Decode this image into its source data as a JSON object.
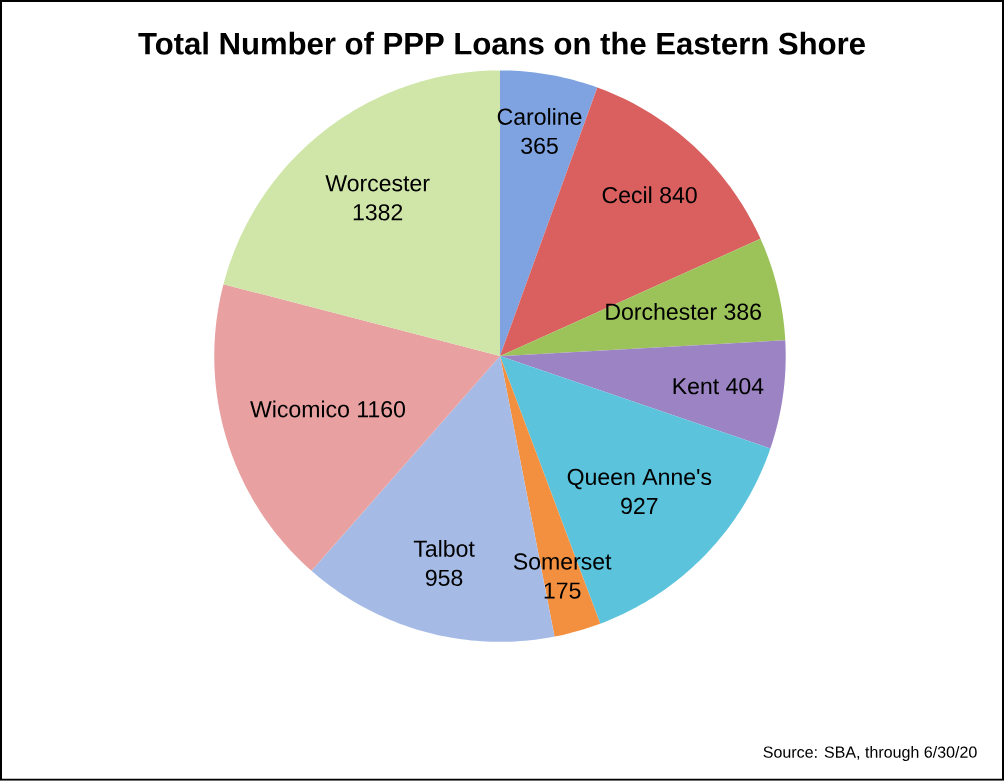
{
  "chart_data": {
    "type": "pie",
    "title": "Total Number of PPP Loans on the Eastern Shore",
    "categories": [
      "Caroline",
      "Cecil",
      "Dorchester",
      "Kent",
      "Queen Anne's",
      "Somerset",
      "Talbot",
      "Wicomico",
      "Worcester"
    ],
    "values": [
      365,
      840,
      386,
      404,
      927,
      175,
      958,
      1160,
      1382
    ],
    "colors": [
      "#7fa3e0",
      "#d9605f",
      "#9cc25a",
      "#9c84c4",
      "#5bc3dc",
      "#f39040",
      "#a5bbe6",
      "#e9a0a0",
      "#cfe6a8"
    ],
    "data_labels": true,
    "annotations": [
      "Source: SBA, through 6/30/20"
    ]
  }
}
